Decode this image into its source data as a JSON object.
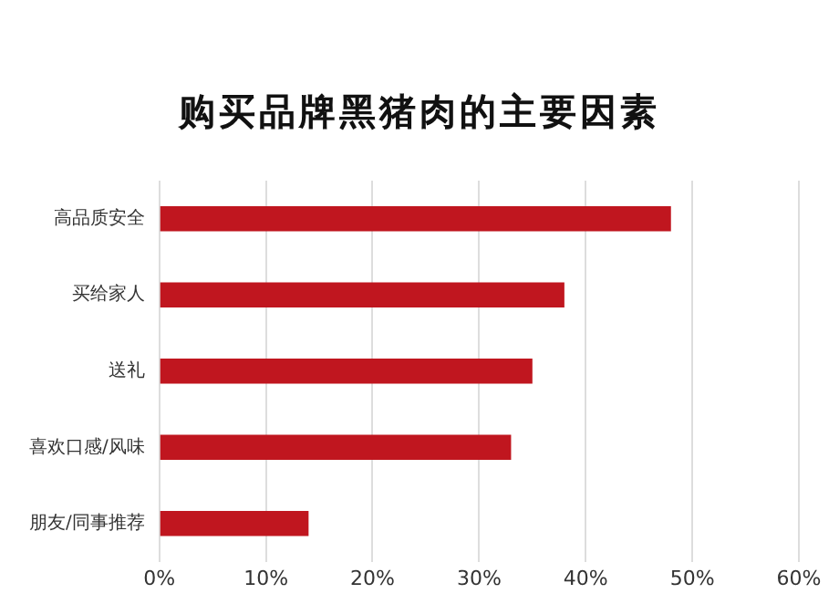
{
  "chart_data": {
    "type": "bar",
    "orientation": "horizontal",
    "title": "购买品牌黑猪肉的主要因素",
    "categories": [
      "高品质安全",
      "买给家人",
      "送礼",
      "喜欢口感/风味",
      "朋友/同事推荐"
    ],
    "values": [
      48,
      38,
      35,
      33,
      14
    ],
    "color": "#c0161f",
    "xlim": [
      0,
      60
    ],
    "xticks": [
      {
        "value": 0,
        "label": "0%"
      },
      {
        "value": 10,
        "label": "10%"
      },
      {
        "value": 20,
        "label": "20%"
      },
      {
        "value": 30,
        "label": "30%"
      },
      {
        "value": 40,
        "label": "40%"
      },
      {
        "value": 50,
        "label": "50%"
      },
      {
        "value": 60,
        "label": "60%"
      }
    ],
    "grid": "x"
  }
}
